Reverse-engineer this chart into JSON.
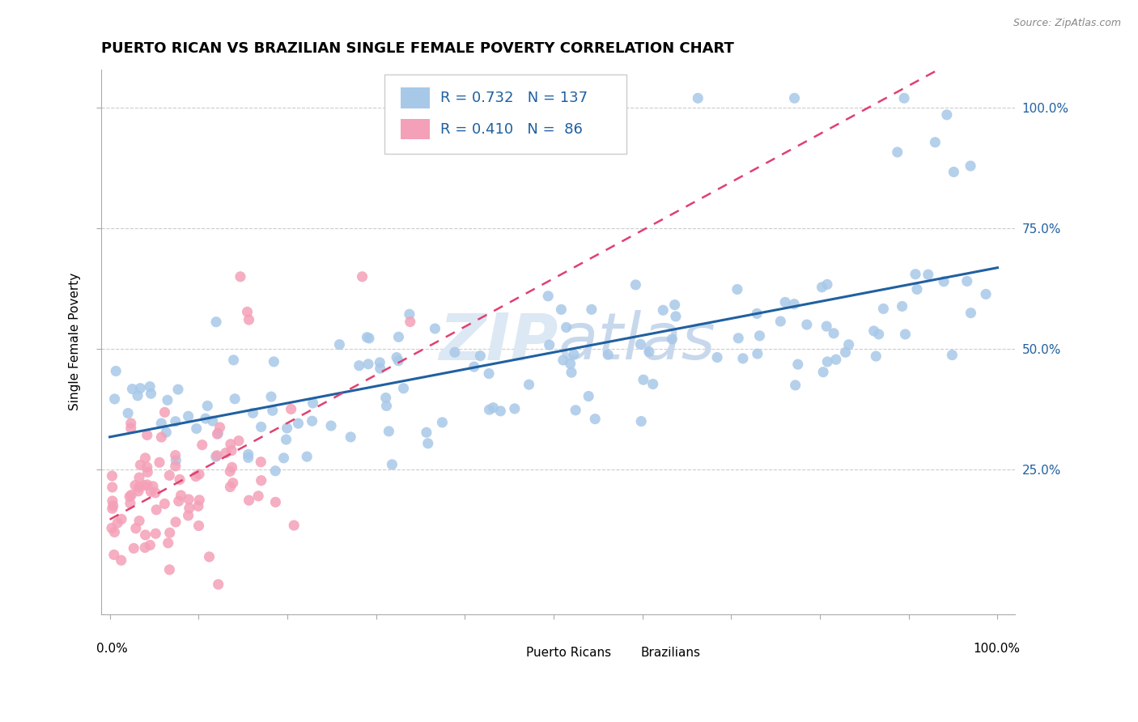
{
  "title": "PUERTO RICAN VS BRAZILIAN SINGLE FEMALE POVERTY CORRELATION CHART",
  "source": "Source: ZipAtlas.com",
  "ylabel": "Single Female Poverty",
  "ytick_labels": [
    "25.0%",
    "50.0%",
    "75.0%",
    "100.0%"
  ],
  "ytick_values": [
    0.25,
    0.5,
    0.75,
    1.0
  ],
  "blue_color": "#a8c8e8",
  "pink_color": "#f4a0b8",
  "blue_line_color": "#2060a0",
  "pink_line_color": "#e04070",
  "watermark": "ZIPAtlas",
  "watermark_color": "#dce8f4",
  "title_fontsize": 13,
  "axis_label_fontsize": 11,
  "tick_fontsize": 11,
  "legend_fontsize": 13,
  "blue_r": 0.732,
  "pink_r": 0.41,
  "blue_n": 137,
  "pink_n": 86,
  "seed_blue": 42,
  "seed_pink": 7
}
